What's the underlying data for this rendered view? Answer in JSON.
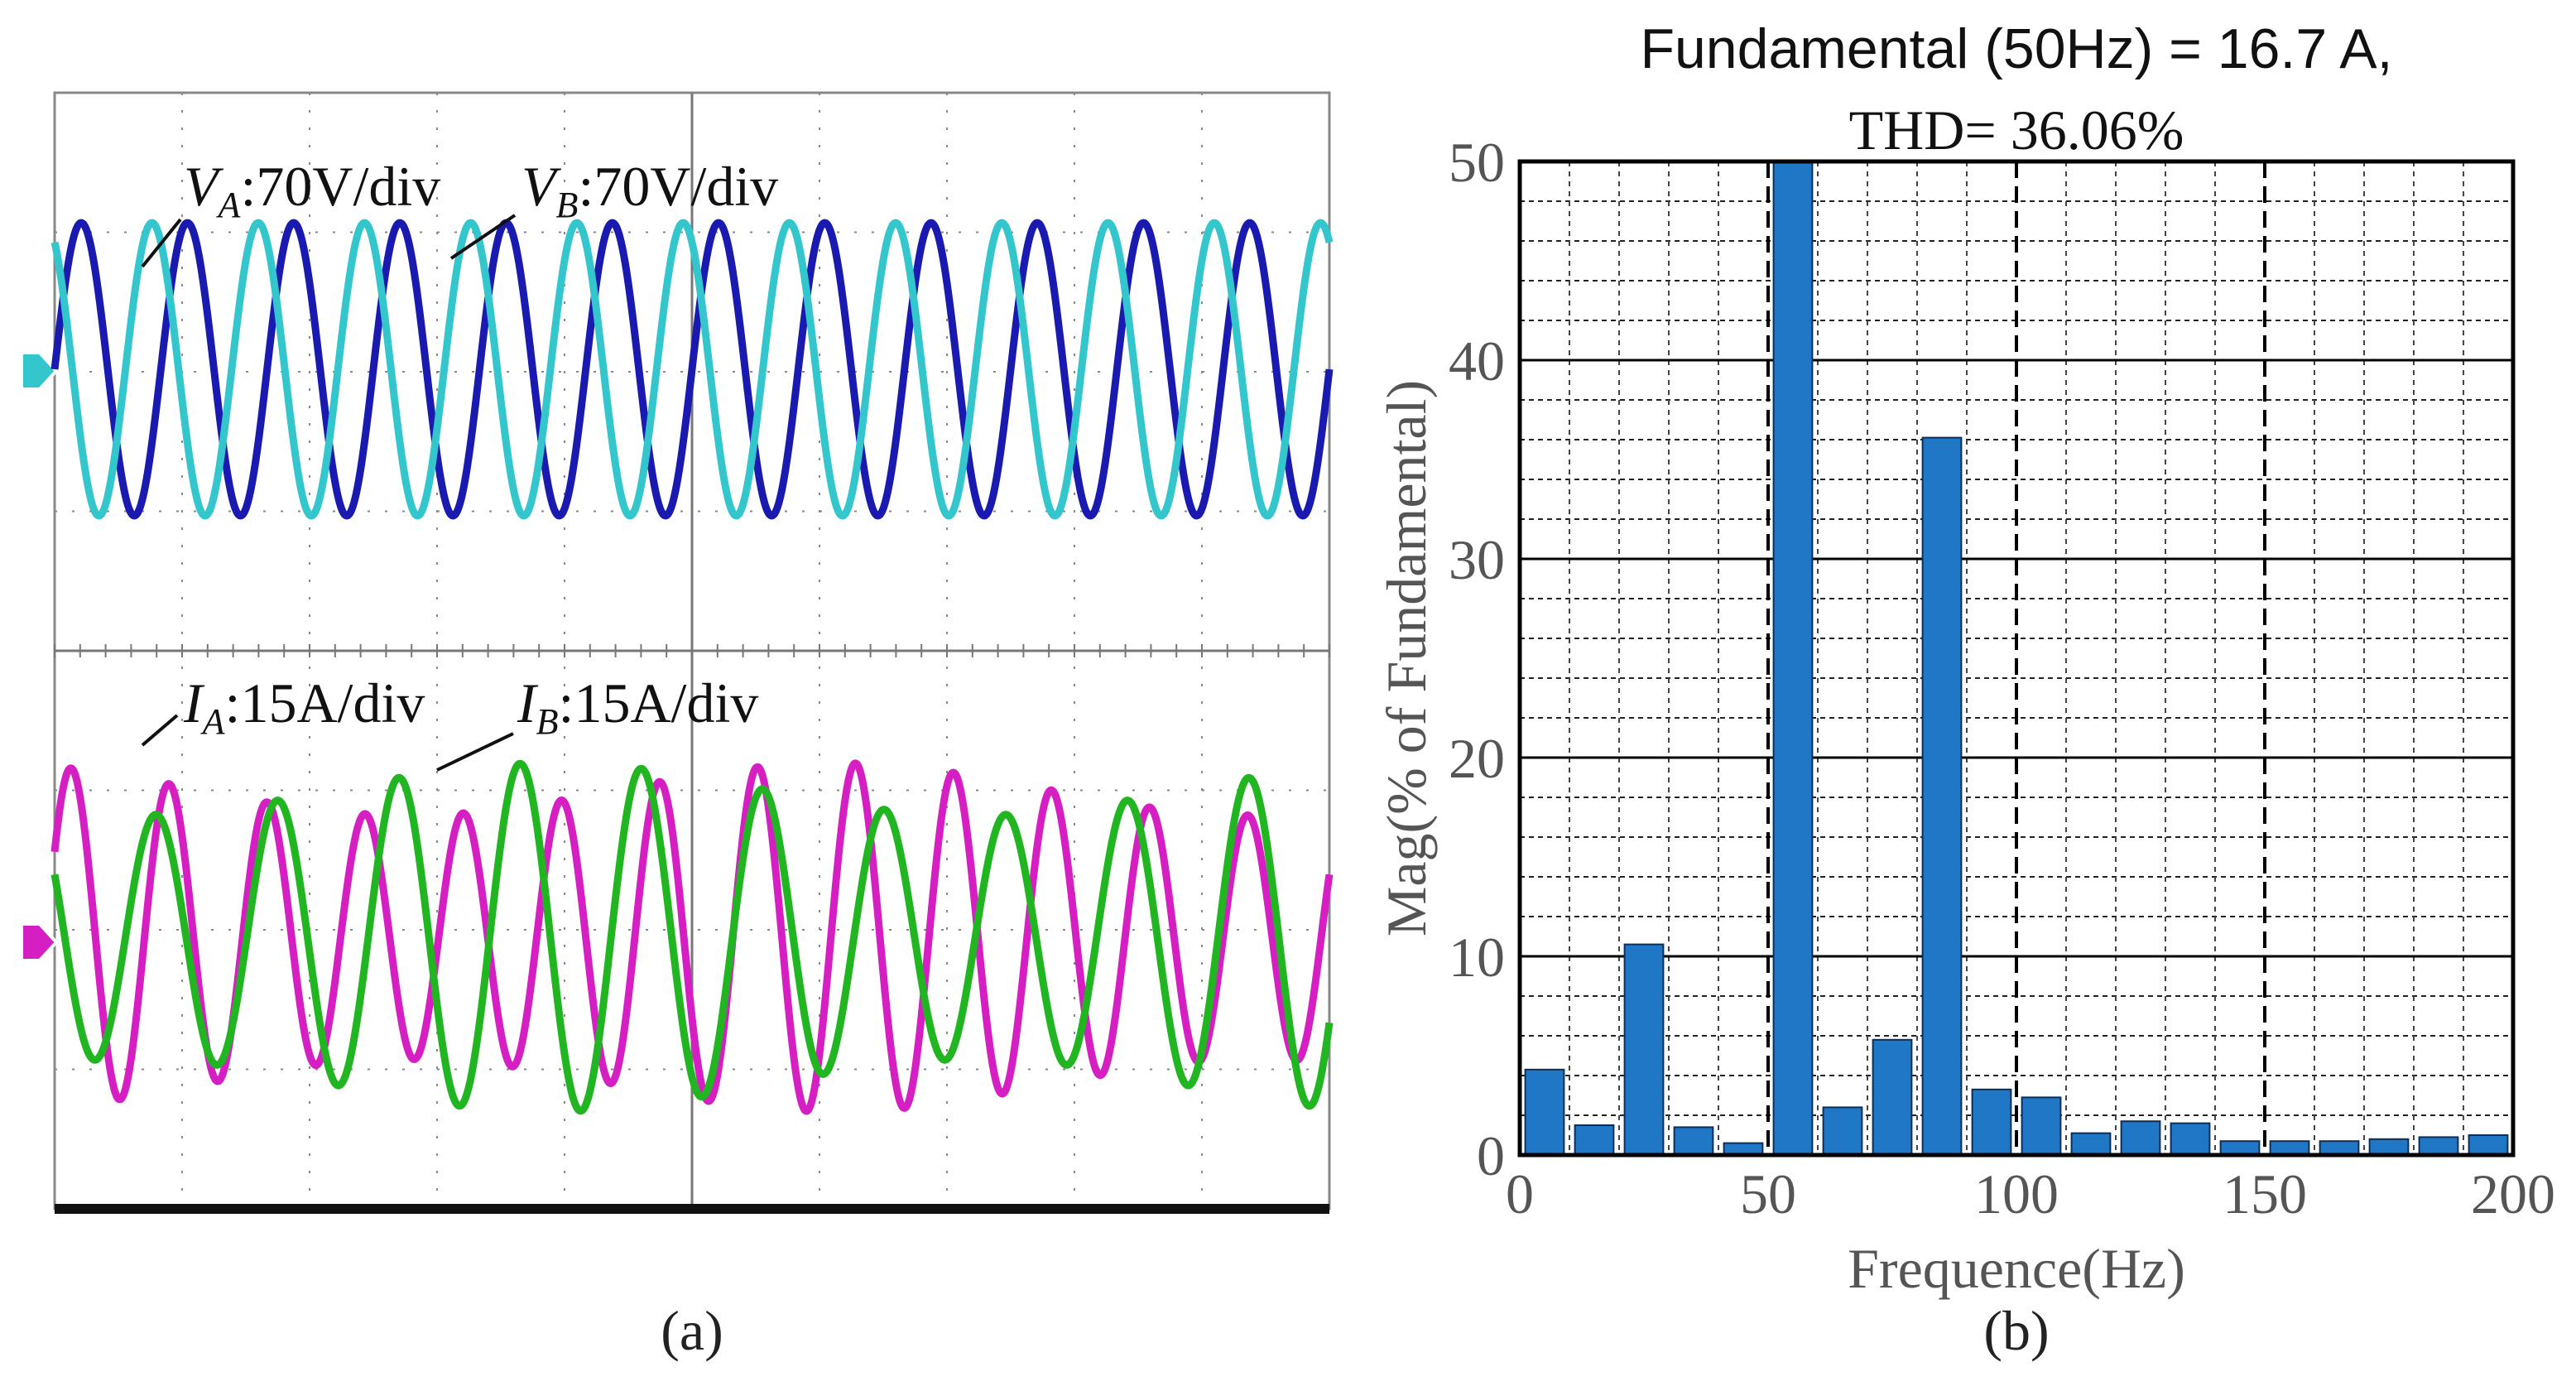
{
  "figure": {
    "caption_a": "(a)",
    "caption_b": "(b)"
  },
  "chart_data": [
    {
      "type": "line",
      "panel": "a",
      "description": "Oscilloscope capture",
      "annotations": [
        {
          "symbol": "V",
          "sub": "A",
          "scale": ":70V/div"
        },
        {
          "symbol": "V",
          "sub": "B",
          "scale": ":70V/div"
        },
        {
          "symbol": "I",
          "sub": "A",
          "scale": ":15A/div"
        },
        {
          "symbol": "I",
          "sub": "B",
          "scale": ":15A/div"
        }
      ],
      "series": [
        {
          "name": "VA",
          "color": "#1a1ab0",
          "cycles": 12,
          "phase_deg": 0,
          "amplitude_div": 1.05
        },
        {
          "name": "VB",
          "color": "#33c6cc",
          "cycles": 12,
          "phase_deg": 120,
          "amplitude_div": 1.05
        },
        {
          "name": "IA",
          "color": "#d61fc2",
          "cycles": 13,
          "phase_deg": 30,
          "amplitude_div": 1.25
        },
        {
          "name": "IB",
          "color": "#22b522",
          "cycles": 10.5,
          "phase_deg": 150,
          "amplitude_div": 1.25
        }
      ],
      "grid": {
        "x_divs": 10,
        "y_divs": 8
      }
    },
    {
      "type": "bar",
      "panel": "b",
      "title_line1": "Fundamental (50Hz) = 16.7 A,",
      "title_line2": "THD= 36.06%",
      "xlabel": "Frequence(Hz)",
      "ylabel": "Mag(% of Fundamental)",
      "xlim": [
        0,
        200
      ],
      "ylim": [
        0,
        50
      ],
      "xticks": [
        0,
        50,
        100,
        150,
        200
      ],
      "yticks": [
        0,
        10,
        20,
        30,
        40,
        50
      ],
      "bar_color": "#1f77c6",
      "x": [
        0,
        10,
        20,
        30,
        40,
        50,
        60,
        70,
        80,
        90,
        100,
        110,
        120,
        130,
        140,
        150,
        160,
        170,
        180,
        190
      ],
      "values": [
        4.3,
        1.5,
        10.6,
        1.4,
        0.6,
        50,
        2.4,
        5.8,
        36.1,
        3.3,
        2.9,
        1.1,
        1.7,
        1.6,
        0.7,
        0.7,
        0.7,
        0.8,
        0.9,
        1.0
      ]
    }
  ]
}
